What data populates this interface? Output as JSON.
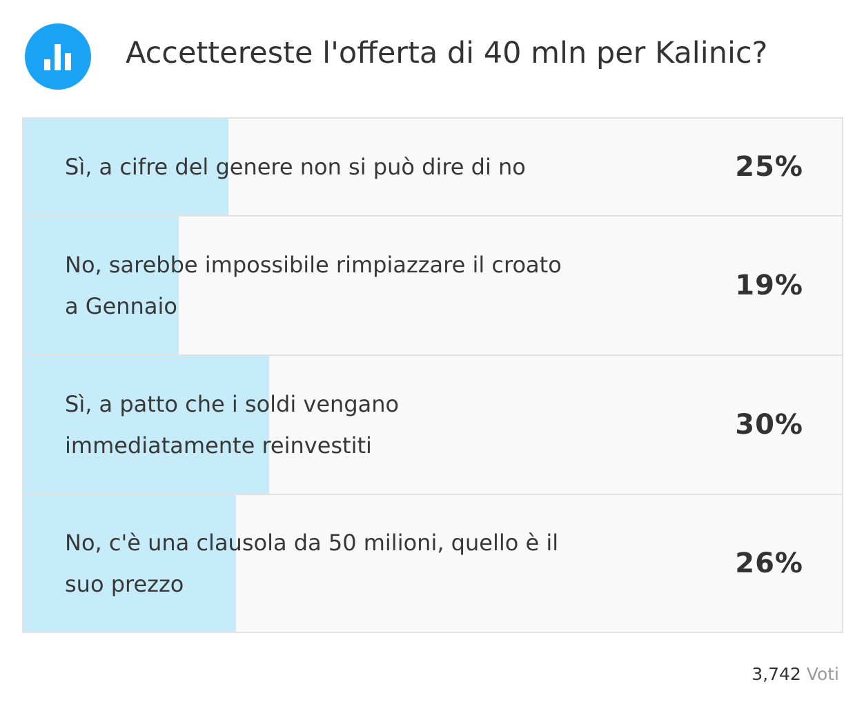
{
  "poll": {
    "icon": "bar-chart-icon",
    "accent_color": "#1aa3f5",
    "bar_color": "#c6ebf9",
    "title": "Accettereste l'offerta di 40 mln per Kalinic?",
    "options": [
      {
        "label": "Sì, a cifre del genere non si può dire di no",
        "percent": "25%",
        "fill": 0.25
      },
      {
        "label": "No, sarebbe impossibile rimpiazzare il croato a Gennaio",
        "percent": "19%",
        "fill": 0.19
      },
      {
        "label": "Sì, a patto che i soldi vengano immediatamente reinvestiti",
        "percent": "30%",
        "fill": 0.3
      },
      {
        "label": "No, c'è una clausola da 50 milioni, quello è il suo prezzo",
        "percent": "26%",
        "fill": 0.26
      }
    ],
    "votes": {
      "count": "3,742",
      "label": "Voti"
    }
  }
}
